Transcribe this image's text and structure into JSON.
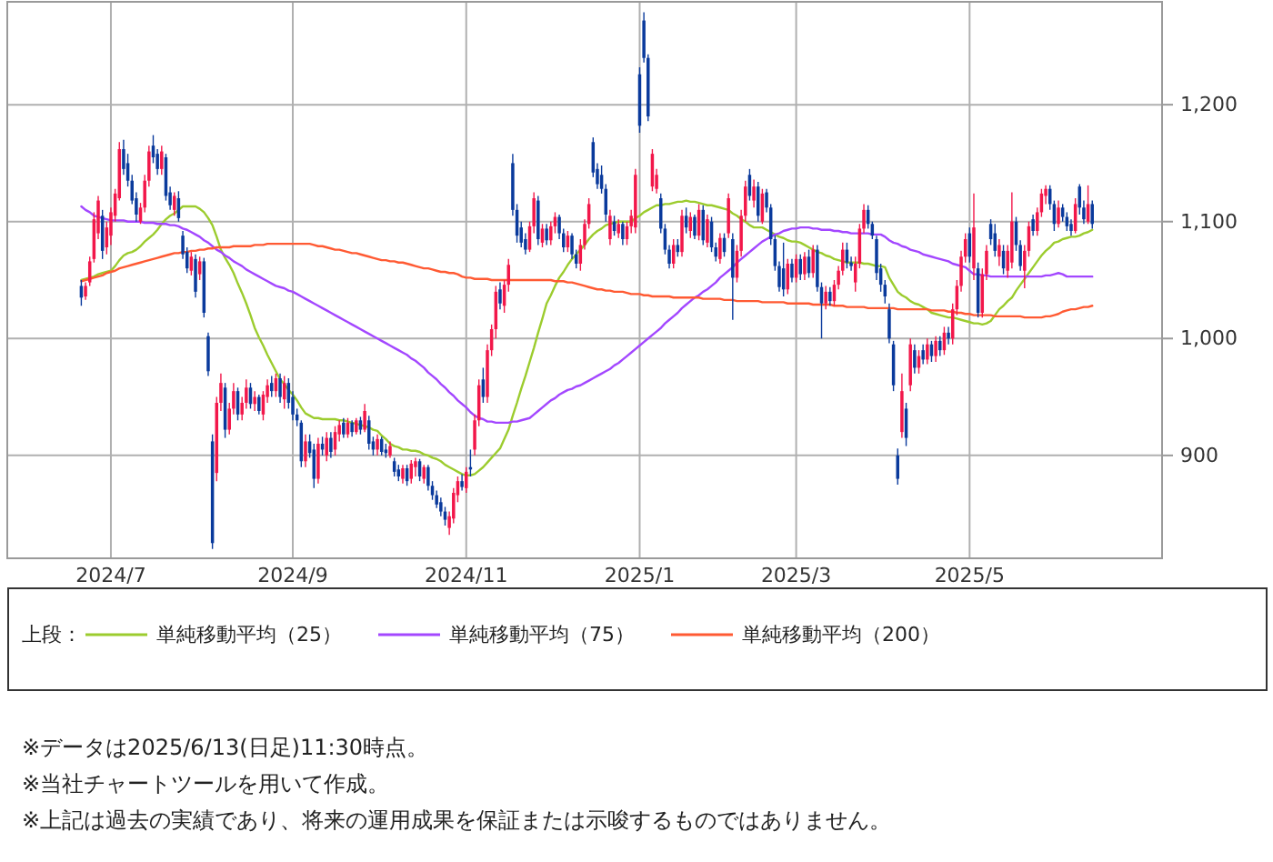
{
  "chart_data": {
    "type": "candlestick",
    "categories": [
      null,
      null,
      null,
      null,
      null,
      null,
      null,
      null,
      null,
      null,
      null,
      null,
      null,
      null,
      null,
      null,
      null,
      null,
      null,
      null,
      null,
      null,
      null,
      null,
      "2024/7",
      null,
      null,
      null,
      null,
      null,
      null,
      null,
      null,
      null,
      null,
      null,
      null,
      null,
      null,
      null,
      null,
      null,
      null,
      null,
      null,
      null,
      null,
      null,
      null,
      null,
      null,
      null,
      null,
      null,
      null,
      null,
      null,
      null,
      null,
      null,
      null,
      null,
      null,
      null,
      null,
      null,
      null,
      "2024/9",
      null,
      null,
      null,
      null,
      null,
      null,
      null,
      null,
      null,
      null,
      null,
      null,
      null,
      null,
      null,
      null,
      null,
      null,
      null,
      null,
      null,
      null,
      null,
      null,
      null,
      null,
      null,
      null,
      null,
      null,
      null,
      null,
      null,
      null,
      null,
      null,
      null,
      null,
      null,
      null,
      "2024/11",
      null,
      null,
      null,
      null,
      null,
      null,
      null,
      null,
      null,
      null,
      null,
      null,
      null,
      null,
      null,
      null,
      null,
      null,
      null,
      null,
      null,
      null,
      null,
      null,
      null,
      null,
      null,
      null,
      null,
      null,
      null,
      null,
      null,
      null,
      null,
      null,
      null,
      null,
      null,
      null,
      "2025/1",
      null,
      null,
      null,
      null,
      null,
      null,
      null,
      null,
      null,
      null,
      null,
      null,
      null,
      null,
      null,
      null,
      null,
      null,
      null,
      null,
      null,
      null,
      null,
      null,
      null,
      null,
      null,
      null,
      null,
      null,
      null,
      null,
      null,
      null,
      null,
      null,
      "2025/3",
      null,
      null,
      null,
      null,
      null,
      null,
      null,
      null,
      null,
      null,
      null,
      null,
      null,
      null,
      null,
      null,
      null,
      null,
      null,
      null,
      null,
      null,
      null,
      null,
      null,
      null,
      null,
      null,
      null,
      null,
      null,
      null,
      null,
      null,
      null,
      null,
      null,
      null,
      null,
      null,
      "2025/5",
      null,
      null,
      null,
      null,
      null,
      null,
      null,
      null,
      null,
      null,
      null,
      null,
      null,
      null,
      null,
      null,
      null,
      null,
      null,
      null,
      null,
      null,
      null,
      null,
      null,
      null,
      null,
      null,
      null,
      null,
      null,
      null,
      null,
      null,
      null,
      null,
      null,
      null,
      null,
      null,
      null,
      null,
      null,
      null,
      null
    ],
    "ohlc": [
      null,
      null,
      null,
      null,
      null,
      null,
      null,
      null,
      null,
      null,
      null,
      null,
      null,
      null,
      null,
      null,
      null,
      [
        1045,
        1050,
        1028,
        1035
      ],
      [
        1036,
        1048,
        1033,
        1045
      ],
      [
        1048,
        1070,
        1045,
        1066
      ],
      [
        1068,
        1108,
        1065,
        1102
      ],
      [
        1090,
        1122,
        1085,
        1118
      ],
      [
        1105,
        1110,
        1068,
        1075
      ],
      [
        1078,
        1100,
        1072,
        1095
      ],
      [
        1088,
        1112,
        1080,
        1108
      ],
      [
        1105,
        1128,
        1100,
        1124
      ],
      [
        1120,
        1168,
        1118,
        1162
      ],
      [
        1162,
        1170,
        1140,
        1145
      ],
      [
        1150,
        1158,
        1130,
        1135
      ],
      [
        1135,
        1140,
        1115,
        1118
      ],
      [
        1120,
        1125,
        1100,
        1106
      ],
      [
        1100,
        1116,
        1098,
        1112
      ],
      [
        1112,
        1140,
        1108,
        1135
      ],
      [
        1135,
        1165,
        1130,
        1160
      ],
      [
        1165,
        1174,
        1150,
        1155
      ],
      [
        1158,
        1162,
        1140,
        1145
      ],
      [
        1145,
        1165,
        1140,
        1160
      ],
      [
        1155,
        1158,
        1118,
        1122
      ],
      [
        1125,
        1130,
        1110,
        1114
      ],
      [
        1110,
        1125,
        1105,
        1122
      ],
      [
        1120,
        1126,
        1100,
        1103
      ],
      [
        1088,
        1092,
        1068,
        1072
      ],
      [
        1074,
        1078,
        1056,
        1060
      ],
      [
        1058,
        1074,
        1054,
        1070
      ],
      [
        1068,
        1072,
        1035,
        1040
      ],
      [
        1055,
        1070,
        1050,
        1066
      ],
      [
        1066,
        1069,
        1018,
        1022
      ],
      [
        1002,
        1005,
        968,
        972
      ],
      [
        912,
        918,
        820,
        825
      ],
      [
        885,
        950,
        878,
        945
      ],
      [
        945,
        970,
        938,
        962
      ],
      [
        958,
        962,
        915,
        922
      ],
      [
        922,
        945,
        918,
        940
      ],
      [
        940,
        962,
        935,
        955
      ],
      [
        955,
        958,
        930,
        935
      ],
      [
        935,
        950,
        930,
        945
      ],
      [
        945,
        965,
        940,
        958
      ],
      [
        958,
        962,
        940,
        944
      ],
      [
        944,
        955,
        938,
        950
      ],
      [
        950,
        952,
        935,
        938
      ],
      [
        935,
        955,
        930,
        952
      ],
      [
        950,
        965,
        945,
        960
      ],
      [
        962,
        968,
        950,
        955
      ],
      [
        955,
        970,
        950,
        966
      ],
      [
        966,
        970,
        945,
        950
      ],
      [
        948,
        968,
        940,
        962
      ],
      [
        962,
        966,
        940,
        945
      ],
      [
        950,
        955,
        930,
        935
      ],
      [
        935,
        940,
        925,
        930
      ],
      [
        928,
        930,
        890,
        895
      ],
      [
        895,
        918,
        890,
        912
      ],
      [
        912,
        918,
        898,
        902
      ],
      [
        905,
        910,
        872,
        880
      ],
      [
        880,
        915,
        876,
        910
      ],
      [
        910,
        916,
        900,
        905
      ],
      [
        900,
        920,
        895,
        915
      ],
      [
        915,
        920,
        898,
        903
      ],
      [
        905,
        925,
        900,
        920
      ],
      [
        918,
        930,
        912,
        926
      ],
      [
        928,
        932,
        915,
        918
      ],
      [
        918,
        932,
        915,
        928
      ],
      [
        928,
        930,
        916,
        920
      ],
      [
        920,
        932,
        918,
        930
      ],
      [
        930,
        933,
        918,
        922
      ],
      [
        922,
        944,
        920,
        938
      ],
      [
        930,
        934,
        905,
        910
      ],
      [
        912,
        916,
        900,
        905
      ],
      [
        905,
        918,
        900,
        914
      ],
      [
        914,
        916,
        900,
        903
      ],
      [
        905,
        910,
        898,
        902
      ],
      [
        900,
        912,
        898,
        908
      ],
      [
        895,
        898,
        882,
        886
      ],
      [
        888,
        892,
        878,
        882
      ],
      [
        880,
        892,
        876,
        889
      ],
      [
        889,
        892,
        874,
        878
      ],
      [
        880,
        896,
        876,
        893
      ],
      [
        890,
        898,
        882,
        895
      ],
      [
        895,
        897,
        878,
        882
      ],
      [
        880,
        892,
        876,
        890
      ],
      [
        890,
        892,
        870,
        874
      ],
      [
        874,
        878,
        862,
        866
      ],
      [
        866,
        870,
        855,
        858
      ],
      [
        860,
        864,
        848,
        852
      ],
      [
        852,
        856,
        840,
        845
      ],
      [
        838,
        852,
        832,
        848
      ],
      [
        846,
        872,
        842,
        868
      ],
      [
        866,
        882,
        860,
        878
      ],
      [
        878,
        884,
        870,
        873
      ],
      [
        872,
        890,
        868,
        886
      ],
      [
        890,
        905,
        882,
        888
      ],
      [
        905,
        935,
        900,
        930
      ],
      [
        930,
        965,
        925,
        960
      ],
      [
        965,
        975,
        945,
        950
      ],
      [
        950,
        995,
        945,
        990
      ],
      [
        990,
        1012,
        985,
        1008
      ],
      [
        1008,
        1045,
        1000,
        1040
      ],
      [
        1042,
        1048,
        1025,
        1030
      ],
      [
        1028,
        1050,
        1022,
        1046
      ],
      [
        1046,
        1068,
        1040,
        1063
      ],
      [
        1150,
        1158,
        1105,
        1110
      ],
      [
        1110,
        1115,
        1082,
        1088
      ],
      [
        1095,
        1100,
        1078,
        1082
      ],
      [
        1085,
        1090,
        1072,
        1076
      ],
      [
        1076,
        1100,
        1074,
        1096
      ],
      [
        1096,
        1125,
        1090,
        1120
      ],
      [
        1118,
        1122,
        1080,
        1085
      ],
      [
        1082,
        1098,
        1078,
        1094
      ],
      [
        1094,
        1098,
        1080,
        1084
      ],
      [
        1084,
        1100,
        1080,
        1096
      ],
      [
        1096,
        1108,
        1090,
        1104
      ],
      [
        1104,
        1106,
        1085,
        1090
      ],
      [
        1090,
        1094,
        1074,
        1078
      ],
      [
        1078,
        1092,
        1074,
        1088
      ],
      [
        1088,
        1090,
        1068,
        1072
      ],
      [
        1072,
        1076,
        1060,
        1064
      ],
      [
        1064,
        1085,
        1058,
        1080
      ],
      [
        1080,
        1102,
        1076,
        1098
      ],
      [
        1098,
        1120,
        1094,
        1115
      ],
      [
        1168,
        1172,
        1138,
        1142
      ],
      [
        1145,
        1150,
        1128,
        1132
      ],
      [
        1140,
        1148,
        1124,
        1128
      ],
      [
        1128,
        1132,
        1100,
        1106
      ],
      [
        1085,
        1110,
        1080,
        1105
      ],
      [
        1100,
        1105,
        1088,
        1092
      ],
      [
        1090,
        1102,
        1086,
        1098
      ],
      [
        1098,
        1100,
        1080,
        1085
      ],
      [
        1085,
        1100,
        1080,
        1096
      ],
      [
        1096,
        1110,
        1090,
        1105
      ],
      [
        1095,
        1145,
        1090,
        1140
      ],
      [
        1226,
        1232,
        1176,
        1182
      ],
      [
        1272,
        1279,
        1236,
        1240
      ],
      [
        1240,
        1243,
        1186,
        1190
      ],
      [
        1130,
        1162,
        1126,
        1158
      ],
      [
        1128,
        1145,
        1124,
        1140
      ],
      [
        1120,
        1124,
        1090,
        1094
      ],
      [
        1094,
        1098,
        1072,
        1076
      ],
      [
        1076,
        1080,
        1060,
        1064
      ],
      [
        1064,
        1085,
        1060,
        1080
      ],
      [
        1080,
        1085,
        1070,
        1074
      ],
      [
        1074,
        1110,
        1070,
        1105
      ],
      [
        1105,
        1112,
        1090,
        1095
      ],
      [
        1092,
        1108,
        1086,
        1104
      ],
      [
        1104,
        1106,
        1085,
        1088
      ],
      [
        1088,
        1115,
        1084,
        1110
      ],
      [
        1110,
        1114,
        1080,
        1084
      ],
      [
        1082,
        1106,
        1078,
        1102
      ],
      [
        1100,
        1104,
        1074,
        1078
      ],
      [
        1078,
        1082,
        1066,
        1070
      ],
      [
        1068,
        1090,
        1064,
        1086
      ],
      [
        1086,
        1090,
        1070,
        1074
      ],
      [
        1090,
        1124,
        1086,
        1120
      ],
      [
        1085,
        1090,
        1016,
        1052
      ],
      [
        1052,
        1080,
        1048,
        1075
      ],
      [
        1075,
        1110,
        1070,
        1105
      ],
      [
        1105,
        1135,
        1100,
        1130
      ],
      [
        1140,
        1145,
        1118,
        1122
      ],
      [
        1118,
        1136,
        1112,
        1130
      ],
      [
        1130,
        1134,
        1100,
        1105
      ],
      [
        1100,
        1128,
        1098,
        1124
      ],
      [
        1125,
        1128,
        1108,
        1112
      ],
      [
        1112,
        1115,
        1080,
        1085
      ],
      [
        1085,
        1088,
        1058,
        1062
      ],
      [
        1062,
        1066,
        1040,
        1044
      ],
      [
        1060,
        1082,
        1036,
        1042
      ],
      [
        1042,
        1068,
        1038,
        1064
      ],
      [
        1064,
        1068,
        1048,
        1052
      ],
      [
        1052,
        1072,
        1048,
        1068
      ],
      [
        1068,
        1072,
        1050,
        1055
      ],
      [
        1055,
        1074,
        1050,
        1070
      ],
      [
        1070,
        1076,
        1052,
        1056
      ],
      [
        1056,
        1080,
        1052,
        1076
      ],
      [
        1076,
        1080,
        1040,
        1044
      ],
      [
        1044,
        1048,
        1000,
        1030
      ],
      [
        1030,
        1045,
        1025,
        1040
      ],
      [
        1040,
        1044,
        1028,
        1032
      ],
      [
        1032,
        1050,
        1028,
        1046
      ],
      [
        1046,
        1062,
        1042,
        1058
      ],
      [
        1058,
        1082,
        1054,
        1076
      ],
      [
        1076,
        1082,
        1060,
        1065
      ],
      [
        1065,
        1070,
        1058,
        1062
      ],
      [
        1048,
        1070,
        1040,
        1064
      ],
      [
        1064,
        1098,
        1060,
        1094
      ],
      [
        1094,
        1115,
        1090,
        1110
      ],
      [
        1110,
        1114,
        1094,
        1098
      ],
      [
        1098,
        1100,
        1085,
        1088
      ],
      [
        1085,
        1088,
        1050,
        1056
      ],
      [
        1060,
        1064,
        1040,
        1046
      ],
      [
        1046,
        1050,
        1030,
        1036
      ],
      [
        1025,
        1030,
        996,
        1000
      ],
      [
        995,
        998,
        955,
        960
      ],
      [
        900,
        906,
        875,
        880
      ],
      [
        920,
        970,
        915,
        955
      ],
      [
        940,
        945,
        908,
        915
      ],
      [
        960,
        1000,
        955,
        995
      ],
      [
        990,
        995,
        970,
        975
      ],
      [
        975,
        990,
        970,
        985
      ],
      [
        990,
        995,
        978,
        982
      ],
      [
        982,
        1000,
        978,
        995
      ],
      [
        995,
        998,
        980,
        985
      ],
      [
        985,
        1002,
        980,
        998
      ],
      [
        998,
        1002,
        985,
        990
      ],
      [
        990,
        1010,
        986,
        1005
      ],
      [
        1005,
        1010,
        995,
        1000
      ],
      [
        1000,
        1030,
        995,
        1025
      ],
      [
        1025,
        1050,
        1020,
        1045
      ],
      [
        1045,
        1075,
        1040,
        1070
      ],
      [
        1070,
        1090,
        1065,
        1085
      ],
      [
        1090,
        1095,
        1065,
        1070
      ],
      [
        1060,
        1124,
        1050,
        1095
      ],
      [
        1060,
        1065,
        1018,
        1022
      ],
      [
        1022,
        1060,
        1018,
        1055
      ],
      [
        1055,
        1080,
        1050,
        1075
      ],
      [
        1098,
        1102,
        1080,
        1085
      ],
      [
        1090,
        1098,
        1070,
        1075
      ],
      [
        1070,
        1085,
        1062,
        1080
      ],
      [
        1075,
        1080,
        1055,
        1060
      ],
      [
        1058,
        1080,
        1052,
        1075
      ],
      [
        1065,
        1125,
        1060,
        1100
      ],
      [
        1100,
        1104,
        1075,
        1080
      ],
      [
        1080,
        1084,
        1058,
        1062
      ],
      [
        1058,
        1080,
        1043,
        1075
      ],
      [
        1075,
        1100,
        1070,
        1096
      ],
      [
        1102,
        1106,
        1088,
        1092
      ],
      [
        1092,
        1112,
        1088,
        1108
      ],
      [
        1108,
        1128,
        1104,
        1124
      ],
      [
        1122,
        1131,
        1115,
        1128
      ],
      [
        1128,
        1131,
        1110,
        1115
      ],
      [
        1115,
        1118,
        1092,
        1098
      ],
      [
        1098,
        1118,
        1095,
        1112
      ],
      [
        1112,
        1115,
        1100,
        1104
      ],
      [
        1104,
        1108,
        1092,
        1096
      ],
      [
        1098,
        1102,
        1088,
        1092
      ],
      [
        1092,
        1120,
        1090,
        1115
      ],
      [
        1130,
        1132,
        1106,
        1112
      ],
      [
        1112,
        1118,
        1098,
        1102
      ],
      [
        1100,
        1131,
        1098,
        1115
      ],
      [
        1115,
        1118,
        1094,
        1098
      ],
      null,
      null,
      null,
      null,
      null,
      null,
      null,
      null,
      null,
      null,
      null,
      null,
      null,
      null,
      null,
      null
    ],
    "colors": [
      null,
      null,
      null,
      null,
      null,
      null,
      null,
      null,
      null,
      null,
      null,
      null,
      null,
      null,
      null,
      null,
      null,
      "#0a3a9c",
      "#f2174a",
      "#f2174a",
      "#f2174a",
      "#f2174a",
      "#0a3a9c",
      "#f2174a",
      "#f2174a",
      "#f2174a",
      "#f2174a",
      "#0a3a9c",
      "#0a3a9c",
      "#0a3a9c",
      "#0a3a9c",
      "#f2174a",
      "#f2174a",
      "#f2174a",
      "#0a3a9c",
      "#0a3a9c",
      "#f2174a",
      "#0a3a9c",
      "#0a3a9c",
      "#f2174a",
      "#0a3a9c",
      "#0a3a9c",
      "#0a3a9c",
      "#f2174a",
      "#0a3a9c",
      "#f2174a",
      "#0a3a9c",
      "#0a3a9c",
      "#0a3a9c",
      "#f2174a",
      "#f2174a",
      "#0a3a9c",
      "#f2174a",
      "#f2174a",
      "#0a3a9c",
      "#f2174a",
      "#f2174a",
      "#0a3a9c",
      "#f2174a",
      "#0a3a9c",
      "#f2174a",
      "#f2174a",
      "#0a3a9c",
      "#f2174a",
      "#0a3a9c",
      "#f2174a",
      "#0a3a9c",
      "#0a3a9c",
      "#0a3a9c",
      "#0a3a9c",
      "#f2174a",
      "#0a3a9c",
      "#0a3a9c",
      "#f2174a",
      "#0a3a9c",
      "#f2174a",
      "#0a3a9c",
      "#f2174a",
      "#f2174a",
      "#0a3a9c",
      "#f2174a",
      "#0a3a9c",
      "#f2174a",
      "#0a3a9c",
      "#f2174a",
      "#0a3a9c",
      "#0a3a9c",
      "#f2174a",
      "#0a3a9c",
      "#0a3a9c",
      "#f2174a",
      "#0a3a9c",
      "#0a3a9c",
      "#f2174a",
      "#0a3a9c",
      "#f2174a",
      "#f2174a",
      "#0a3a9c",
      "#f2174a",
      "#0a3a9c",
      "#0a3a9c",
      "#0a3a9c",
      "#0a3a9c",
      "#0a3a9c",
      "#f2174a",
      "#f2174a",
      "#f2174a",
      "#0a3a9c",
      "#f2174a",
      "#0a3a9c",
      "#f2174a",
      "#f2174a",
      "#0a3a9c",
      "#f2174a",
      "#f2174a",
      "#f2174a",
      "#0a3a9c",
      "#f2174a",
      "#f2174a",
      "#0a3a9c",
      "#0a3a9c",
      "#0a3a9c",
      "#0a3a9c",
      "#f2174a",
      "#f2174a",
      "#0a3a9c",
      "#f2174a",
      "#0a3a9c",
      "#f2174a",
      "#f2174a",
      "#0a3a9c",
      "#0a3a9c",
      "#f2174a",
      "#0a3a9c",
      "#0a3a9c",
      "#f2174a",
      "#f2174a",
      "#f2174a",
      "#0a3a9c",
      "#0a3a9c",
      "#0a3a9c",
      "#0a3a9c",
      "#f2174a",
      "#0a3a9c",
      "#f2174a",
      "#0a3a9c",
      "#f2174a",
      "#f2174a",
      "#f2174a",
      "#0a3a9c",
      "#0a3a9c",
      "#0a3a9c",
      "#f2174a",
      "#f2174a",
      "#0a3a9c",
      "#0a3a9c",
      "#0a3a9c",
      "#f2174a",
      "#0a3a9c",
      "#f2174a",
      "#0a3a9c",
      "#f2174a",
      "#0a3a9c",
      "#f2174a",
      "#0a3a9c",
      "#f2174a",
      "#0a3a9c",
      "#0a3a9c",
      "#f2174a",
      "#0a3a9c",
      "#f2174a",
      "#0a3a9c",
      "#f2174a",
      "#f2174a",
      "#f2174a",
      "#0a3a9c",
      "#f2174a",
      "#0a3a9c",
      "#f2174a",
      "#0a3a9c",
      "#0a3a9c",
      "#0a3a9c",
      "#0a3a9c",
      "#0a3a9c",
      "#f2174a",
      "#0a3a9c",
      "#f2174a",
      "#0a3a9c",
      "#f2174a",
      "#0a3a9c",
      "#f2174a",
      "#0a3a9c",
      "#0a3a9c",
      "#f2174a",
      "#0a3a9c",
      "#f2174a",
      "#f2174a",
      "#f2174a",
      "#0a3a9c",
      "#0a3a9c",
      "#f2174a",
      "#f2174a",
      "#f2174a",
      "#0a3a9c",
      "#0a3a9c",
      "#0a3a9c",
      "#0a3a9c",
      "#0a3a9c",
      "#0a3a9c",
      "#0a3a9c",
      "#0a3a9c",
      "#f2174a",
      "#0a3a9c",
      "#f2174a",
      "#0a3a9c",
      "#f2174a",
      "#0a3a9c",
      "#f2174a",
      "#0a3a9c",
      "#f2174a",
      "#0a3a9c",
      "#f2174a",
      "#0a3a9c",
      "#f2174a",
      "#f2174a",
      "#f2174a",
      "#f2174a",
      "#0a3a9c",
      "#f2174a",
      "#0a3a9c",
      "#f2174a",
      "#f2174a",
      "#0a3a9c",
      "#0a3a9c",
      "#f2174a",
      "#0a3a9c",
      "#f2174a",
      "#f2174a",
      "#0a3a9c",
      "#0a3a9c",
      "#f2174a",
      "#f2174a",
      "#0a3a9c",
      "#f2174a",
      "#f2174a",
      "#f2174a",
      "#0a3a9c",
      "#0a3a9c",
      "#f2174a",
      "#0a3a9c",
      "#0a3a9c",
      "#0a3a9c",
      "#f2174a",
      "#0a3a9c",
      "#0a3a9c",
      "#f2174a",
      "#0a3a9c",
      null,
      null,
      null,
      null,
      null,
      null,
      null,
      null,
      null,
      null,
      null,
      null,
      null,
      null,
      null,
      null
    ],
    "series": [
      {
        "type": "line",
        "name": "単純移動平均（25）",
        "color": "#9ccc2e",
        "values": [
          null,
          null,
          null,
          null,
          null,
          null,
          null,
          null,
          null,
          null,
          null,
          null,
          null,
          null,
          null,
          null,
          null,
          1050,
          1051,
          1052,
          1053,
          1055,
          1056,
          1057,
          1058,
          1062,
          1067,
          1071,
          1073,
          1074,
          1076,
          1079,
          1083,
          1086,
          1089,
          1093,
          1098,
          1102,
          1105,
          1107,
          1110,
          1113,
          1113,
          1113,
          1113,
          1111,
          1108,
          1103,
          1097,
          1087,
          1076,
          1069,
          1063,
          1056,
          1047,
          1039,
          1030,
          1020,
          1009,
          1001,
          994,
          986,
          979,
          972,
          965,
          961,
          956,
          952,
          947,
          941,
          936,
          934,
          932,
          932,
          931,
          931,
          931,
          931,
          930,
          930,
          929,
          928,
          927,
          926,
          925,
          924,
          922,
          921,
          917,
          914,
          910,
          908,
          907,
          905,
          905,
          904,
          904,
          903,
          901,
          900,
          898,
          897,
          895,
          892,
          890,
          888,
          886,
          884,
          883,
          883,
          884,
          887,
          890,
          894,
          898,
          902,
          906,
          914,
          922,
          934,
          945,
          957,
          968,
          980,
          992,
          1005,
          1017,
          1030,
          1037,
          1045,
          1052,
          1057,
          1063,
          1068,
          1072,
          1076,
          1080,
          1085,
          1089,
          1092,
          1094,
          1097,
          1098,
          1099,
          1100,
          1100,
          1100,
          1100,
          1103,
          1105,
          1108,
          1110,
          1112,
          1114,
          1114,
          1115,
          1115,
          1116,
          1117,
          1117,
          1118,
          1117,
          1117,
          1116,
          1115,
          1114,
          1114,
          1113,
          1112,
          1111,
          1110,
          1107,
          1105,
          1102,
          1100,
          1097,
          1095,
          1095,
          1095,
          1093,
          1091,
          1089,
          1087,
          1086,
          1084,
          1083,
          1083,
          1082,
          1080,
          1078,
          1076,
          1074,
          1073,
          1071,
          1070,
          1068,
          1067,
          1066,
          1065,
          1065,
          1065,
          1065,
          1064,
          1064,
          1063,
          1062,
          1062,
          1061,
          1052,
          1046,
          1040,
          1037,
          1035,
          1032,
          1030,
          1029,
          1027,
          1025,
          1022,
          1021,
          1020,
          1019,
          1018,
          1018,
          1017,
          1016,
          1015,
          1014,
          1013,
          1013,
          1012,
          1013,
          1015,
          1020,
          1025,
          1028,
          1032,
          1035,
          1041,
          1046,
          1051,
          1056,
          1061,
          1066,
          1071,
          1075,
          1078,
          1082,
          1083,
          1085,
          1086,
          1087,
          1087,
          1088,
          1090,
          1091,
          1093,
          null,
          null,
          null,
          null,
          null,
          null,
          null,
          null,
          null,
          null,
          null,
          null,
          null,
          null,
          null,
          null
        ]
      },
      {
        "type": "line",
        "name": "単純移動平均（75）",
        "color": "#a347ff",
        "values": [
          null,
          null,
          null,
          null,
          null,
          null,
          null,
          null,
          null,
          null,
          null,
          null,
          null,
          null,
          null,
          null,
          null,
          1113,
          1110,
          1108,
          1105,
          1104,
          1103,
          1102,
          1101,
          1101,
          1101,
          1101,
          1100,
          1100,
          1100,
          1100,
          1099,
          1099,
          1099,
          1098,
          1098,
          1098,
          1097,
          1097,
          1096,
          1094,
          1093,
          1091,
          1089,
          1087,
          1084,
          1082,
          1079,
          1076,
          1074,
          1071,
          1069,
          1066,
          1064,
          1062,
          1059,
          1057,
          1055,
          1053,
          1051,
          1049,
          1047,
          1045,
          1044,
          1043,
          1041,
          1040,
          1038,
          1036,
          1034,
          1032,
          1030,
          1028,
          1026,
          1024,
          1022,
          1020,
          1018,
          1016,
          1014,
          1012,
          1010,
          1008,
          1006,
          1004,
          1002,
          1000,
          998,
          996,
          994,
          992,
          990,
          988,
          986,
          983,
          981,
          978,
          975,
          971,
          968,
          965,
          961,
          958,
          954,
          951,
          947,
          944,
          941,
          937,
          934,
          932,
          931,
          929,
          929,
          928,
          928,
          928,
          928,
          929,
          929,
          930,
          931,
          932,
          935,
          938,
          941,
          944,
          947,
          949,
          952,
          954,
          956,
          957,
          959,
          960,
          962,
          964,
          966,
          968,
          970,
          972,
          974,
          977,
          979,
          982,
          985,
          988,
          991,
          994,
          997,
          1000,
          1003,
          1006,
          1009,
          1013,
          1016,
          1019,
          1022,
          1026,
          1029,
          1032,
          1035,
          1037,
          1040,
          1042,
          1045,
          1048,
          1052,
          1055,
          1058,
          1061,
          1065,
          1068,
          1071,
          1074,
          1077,
          1080,
          1083,
          1085,
          1087,
          1089,
          1090,
          1092,
          1093,
          1094,
          1094,
          1095,
          1095,
          1095,
          1094,
          1094,
          1093,
          1093,
          1093,
          1092,
          1092,
          1091,
          1091,
          1090,
          1090,
          1090,
          1090,
          1090,
          1089,
          1089,
          1089,
          1087,
          1084,
          1082,
          1081,
          1079,
          1078,
          1076,
          1075,
          1074,
          1072,
          1071,
          1070,
          1069,
          1068,
          1067,
          1066,
          1064,
          1063,
          1062,
          1061,
          1058,
          1055,
          1055,
          1054,
          1054,
          1053,
          1053,
          1053,
          1053,
          1053,
          1053,
          1053,
          1053,
          1053,
          1053,
          1053,
          1053,
          1053,
          1054,
          1054,
          1055,
          1056,
          1055,
          1053,
          1053,
          1053,
          1053,
          1053,
          1053,
          1053,
          null,
          null,
          null,
          null,
          null,
          null,
          null,
          null,
          null,
          null,
          null,
          null,
          null,
          null,
          null,
          null
        ]
      },
      {
        "type": "line",
        "name": "単純移動平均（200）",
        "color": "#ff5a33",
        "values": [
          null,
          null,
          null,
          null,
          null,
          null,
          null,
          null,
          null,
          null,
          null,
          null,
          null,
          null,
          null,
          null,
          null,
          1049,
          1050,
          1051,
          1052,
          1053,
          1054,
          1056,
          1057,
          1058,
          1060,
          1061,
          1062,
          1063,
          1064,
          1065,
          1066,
          1067,
          1068,
          1069,
          1070,
          1071,
          1072,
          1073,
          1073,
          1074,
          1074,
          1075,
          1075,
          1076,
          1076,
          1077,
          1077,
          1078,
          1078,
          1078,
          1078,
          1079,
          1079,
          1079,
          1079,
          1079,
          1080,
          1080,
          1080,
          1081,
          1081,
          1081,
          1081,
          1081,
          1081,
          1081,
          1081,
          1081,
          1081,
          1081,
          1080,
          1079,
          1079,
          1078,
          1077,
          1076,
          1076,
          1075,
          1074,
          1073,
          1073,
          1072,
          1071,
          1070,
          1069,
          1068,
          1067,
          1067,
          1066,
          1066,
          1065,
          1065,
          1064,
          1063,
          1062,
          1061,
          1060,
          1060,
          1059,
          1058,
          1057,
          1057,
          1056,
          1056,
          1055,
          1053,
          1052,
          1052,
          1051,
          1051,
          1051,
          1051,
          1050,
          1050,
          1050,
          1050,
          1050,
          1050,
          1050,
          1050,
          1050,
          1050,
          1050,
          1050,
          1050,
          1050,
          1050,
          1049,
          1049,
          1049,
          1048,
          1048,
          1047,
          1046,
          1045,
          1044,
          1043,
          1042,
          1042,
          1041,
          1041,
          1040,
          1040,
          1040,
          1039,
          1038,
          1038,
          1038,
          1037,
          1037,
          1036,
          1036,
          1036,
          1036,
          1036,
          1035,
          1035,
          1035,
          1035,
          1035,
          1035,
          1035,
          1034,
          1034,
          1034,
          1034,
          1034,
          1033,
          1033,
          1033,
          1032,
          1032,
          1032,
          1032,
          1032,
          1032,
          1031,
          1031,
          1031,
          1031,
          1031,
          1031,
          1030,
          1030,
          1030,
          1030,
          1030,
          1030,
          1029,
          1029,
          1029,
          1029,
          1029,
          1028,
          1028,
          1028,
          1027,
          1027,
          1027,
          1027,
          1027,
          1026,
          1026,
          1026,
          1026,
          1026,
          1026,
          1026,
          1025,
          1025,
          1025,
          1025,
          1025,
          1025,
          1025,
          1025,
          1024,
          1024,
          1024,
          1024,
          1023,
          1023,
          1022,
          1022,
          1021,
          1021,
          1020,
          1020,
          1020,
          1020,
          1020,
          1019,
          1019,
          1019,
          1019,
          1019,
          1019,
          1019,
          1018,
          1018,
          1018,
          1018,
          1018,
          1019,
          1019,
          1020,
          1021,
          1023,
          1024,
          1025,
          1025,
          1026,
          1027,
          1027,
          1028,
          null,
          null,
          null,
          null,
          null,
          null,
          null,
          null,
          null,
          null,
          null,
          null,
          null,
          null,
          null,
          null
        ]
      }
    ],
    "ylim": [
      812,
      1288
    ],
    "yticks": [
      {
        "value": 1200,
        "label": "1,200"
      },
      {
        "value": 1100,
        "label": "1,100"
      },
      {
        "value": 1000,
        "label": "1,000"
      },
      900
    ],
    "grid": true,
    "legend": "bottom",
    "legend_title": "上段：",
    "annotations": [
      "※データは2025/6/13(日足)11:30時点。",
      "※当社チャートツールを用いて作成。",
      "※上記は過去の実績であり、将来の運用成果を保証または示唆するものではありません。"
    ]
  }
}
